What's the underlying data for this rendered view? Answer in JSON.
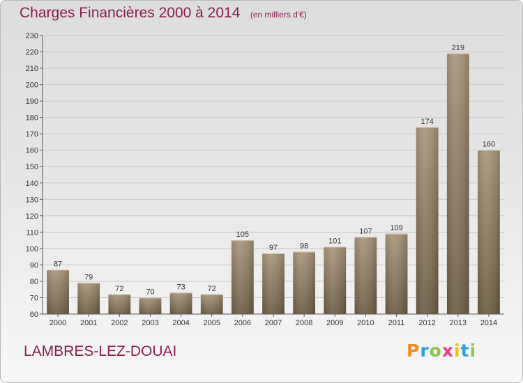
{
  "header": {
    "title": "Charges Financières 2000 à 2014",
    "subtitle": "(en milliers d'€)"
  },
  "footer": {
    "commune": "LAMBRES-LEZ-DOUAI",
    "logo_letters": [
      "P",
      "r",
      "o",
      "x",
      "i",
      "t",
      "i"
    ],
    "logo_colors": [
      "#f08a1c",
      "#2e9fd8",
      "#8cc63f",
      "#e83e8c",
      "#f5c400",
      "#2e9fd8",
      "#8cc63f"
    ]
  },
  "colors": {
    "title": "#8b1d4e",
    "bar_light": "#a99679",
    "bar_dark": "#6f5e45",
    "grid": "#c8c8c8",
    "axis": "#555555"
  },
  "chart_data": {
    "type": "bar",
    "title": "Charges Financières 2000 à 2014",
    "subtitle": "(en milliers d'€)",
    "categories": [
      "2000",
      "2001",
      "2002",
      "2003",
      "2004",
      "2005",
      "2006",
      "2007",
      "2008",
      "2009",
      "2010",
      "2011",
      "2012",
      "2013",
      "2014"
    ],
    "values": [
      87,
      79,
      72,
      70,
      73,
      72,
      105,
      97,
      98,
      101,
      107,
      109,
      174,
      219,
      160
    ],
    "ylim": [
      60,
      230
    ],
    "yticks": [
      60,
      70,
      80,
      90,
      100,
      110,
      120,
      130,
      140,
      150,
      160,
      170,
      180,
      190,
      200,
      210,
      220,
      230
    ],
    "grid": true,
    "data_labels": true
  }
}
